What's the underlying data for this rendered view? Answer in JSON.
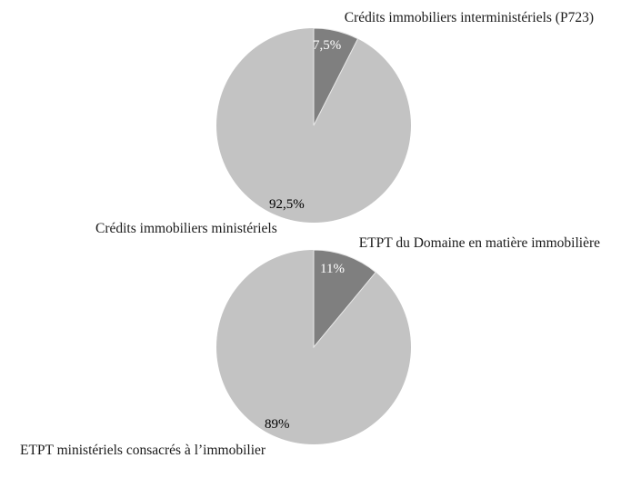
{
  "figure": {
    "background_color": "#ffffff",
    "text_color": "#1a1a1a"
  },
  "chart_data": [
    {
      "type": "pie",
      "start_angle_deg": -90,
      "direction": "clockwise",
      "legend_position": "none",
      "slices": [
        {
          "label": "Crédits immobiliers interministériels (P723)",
          "value": 7.5,
          "display": "7,5%",
          "color": "#7f7f7f",
          "label_color": "#ffffff"
        },
        {
          "label": "Crédits immobiliers ministériels",
          "value": 92.5,
          "display": "92,5%",
          "color": "#c3c3c3",
          "label_color": "#000000"
        }
      ]
    },
    {
      "type": "pie",
      "start_angle_deg": -90,
      "direction": "clockwise",
      "legend_position": "none",
      "slices": [
        {
          "label": "ETPT du Domaine en matière immobilière",
          "value": 11,
          "display": "11%",
          "color": "#7f7f7f",
          "label_color": "#ffffff"
        },
        {
          "label": "ETPT ministériels consacrés à l’immobilier",
          "value": 89,
          "display": "89%",
          "color": "#c3c3c3",
          "label_color": "#000000"
        }
      ]
    }
  ]
}
